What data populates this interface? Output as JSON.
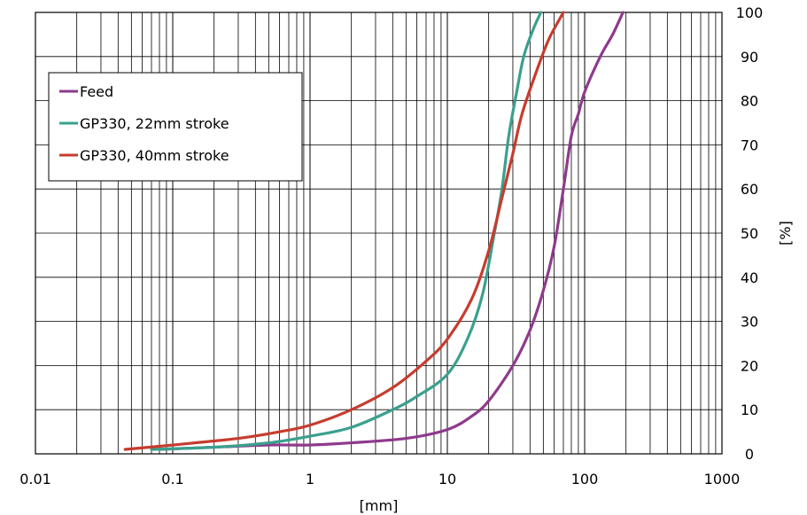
{
  "chart_data": {
    "type": "line",
    "title": "",
    "xlabel": "[mm]",
    "ylabel": "[%]",
    "xscale": "log",
    "xlim": [
      0.01,
      1000
    ],
    "ylim": [
      0,
      100
    ],
    "x_ticks": [
      "0.01",
      "0.1",
      "1",
      "10",
      "100",
      "1000"
    ],
    "y_ticks": [
      "0",
      "10",
      "20",
      "30",
      "40",
      "50",
      "60",
      "70",
      "80",
      "90",
      "100"
    ],
    "y_axis_side": "right",
    "grid": true,
    "legend_position": "top-left",
    "series": [
      {
        "name": "Feed",
        "color": "#8e3a8c",
        "points": [
          [
            0.08,
            1
          ],
          [
            0.2,
            1.5
          ],
          [
            0.5,
            2
          ],
          [
            1,
            2
          ],
          [
            2,
            2.5
          ],
          [
            5,
            3.5
          ],
          [
            10,
            5.5
          ],
          [
            15,
            8.5
          ],
          [
            20,
            12
          ],
          [
            30,
            20
          ],
          [
            40,
            28
          ],
          [
            50,
            37
          ],
          [
            60,
            47
          ],
          [
            70,
            60
          ],
          [
            80,
            72
          ],
          [
            90,
            77
          ],
          [
            100,
            82
          ],
          [
            130,
            90
          ],
          [
            160,
            95
          ],
          [
            190,
            100
          ]
        ]
      },
      {
        "name": "GP330, 22mm stroke",
        "color": "#3aa08e",
        "points": [
          [
            0.07,
            1
          ],
          [
            0.2,
            1.5
          ],
          [
            0.5,
            2.5
          ],
          [
            1,
            4
          ],
          [
            2,
            6
          ],
          [
            4,
            10
          ],
          [
            6,
            13
          ],
          [
            10,
            18
          ],
          [
            14,
            26
          ],
          [
            18,
            36
          ],
          [
            22,
            50
          ],
          [
            25,
            60
          ],
          [
            28,
            72
          ],
          [
            32,
            82
          ],
          [
            36,
            90
          ],
          [
            42,
            96
          ],
          [
            48,
            100
          ]
        ]
      },
      {
        "name": "GP330, 40mm stroke",
        "color": "#c63c2e",
        "points": [
          [
            0.045,
            1
          ],
          [
            0.1,
            2
          ],
          [
            0.3,
            3.5
          ],
          [
            0.6,
            5
          ],
          [
            1,
            6.5
          ],
          [
            2,
            10
          ],
          [
            4,
            15
          ],
          [
            7,
            21
          ],
          [
            10,
            26
          ],
          [
            15,
            35
          ],
          [
            20,
            46
          ],
          [
            25,
            58
          ],
          [
            30,
            68
          ],
          [
            35,
            77
          ],
          [
            45,
            87
          ],
          [
            55,
            94
          ],
          [
            70,
            100
          ]
        ]
      }
    ]
  }
}
